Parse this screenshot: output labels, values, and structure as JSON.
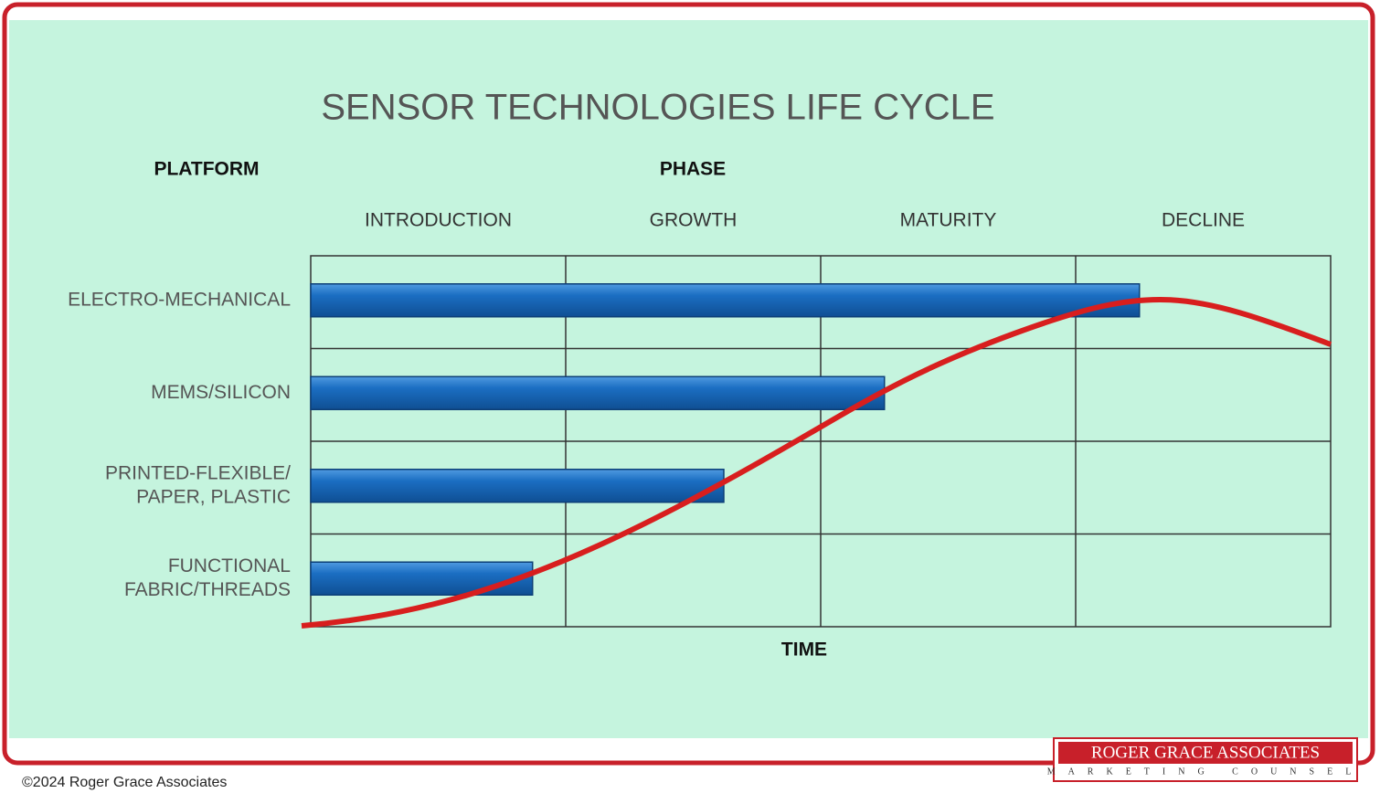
{
  "chart_data": {
    "type": "bar",
    "orientation": "horizontal",
    "title": "SENSOR TECHNOLOGIES LIFE CYCLE",
    "row_header": "PLATFORM",
    "column_header": "PHASE",
    "phases": [
      "INTRODUCTION",
      "GROWTH",
      "MATURITY",
      "DECLINE"
    ],
    "categories": [
      [
        "ELECTRO-MECHANICAL"
      ],
      [
        "MEMS/SILICON"
      ],
      [
        "PRINTED-FLEXIBLE/",
        "PAPER, PLASTIC"
      ],
      [
        "FUNCTIONAL",
        "FABRIC/THREADS"
      ]
    ],
    "values": [
      3.25,
      2.25,
      1.62,
      0.87
    ],
    "xlim": [
      0,
      4
    ],
    "x_label": "TIME",
    "color": "#1b6ec2",
    "grid": true
  },
  "footer": {
    "copyright": "©2024 Roger Grace Associates",
    "logo": "ROGER GRACE ASSOCIATES",
    "logo_tagline": "MARKETING COUNSEL"
  }
}
